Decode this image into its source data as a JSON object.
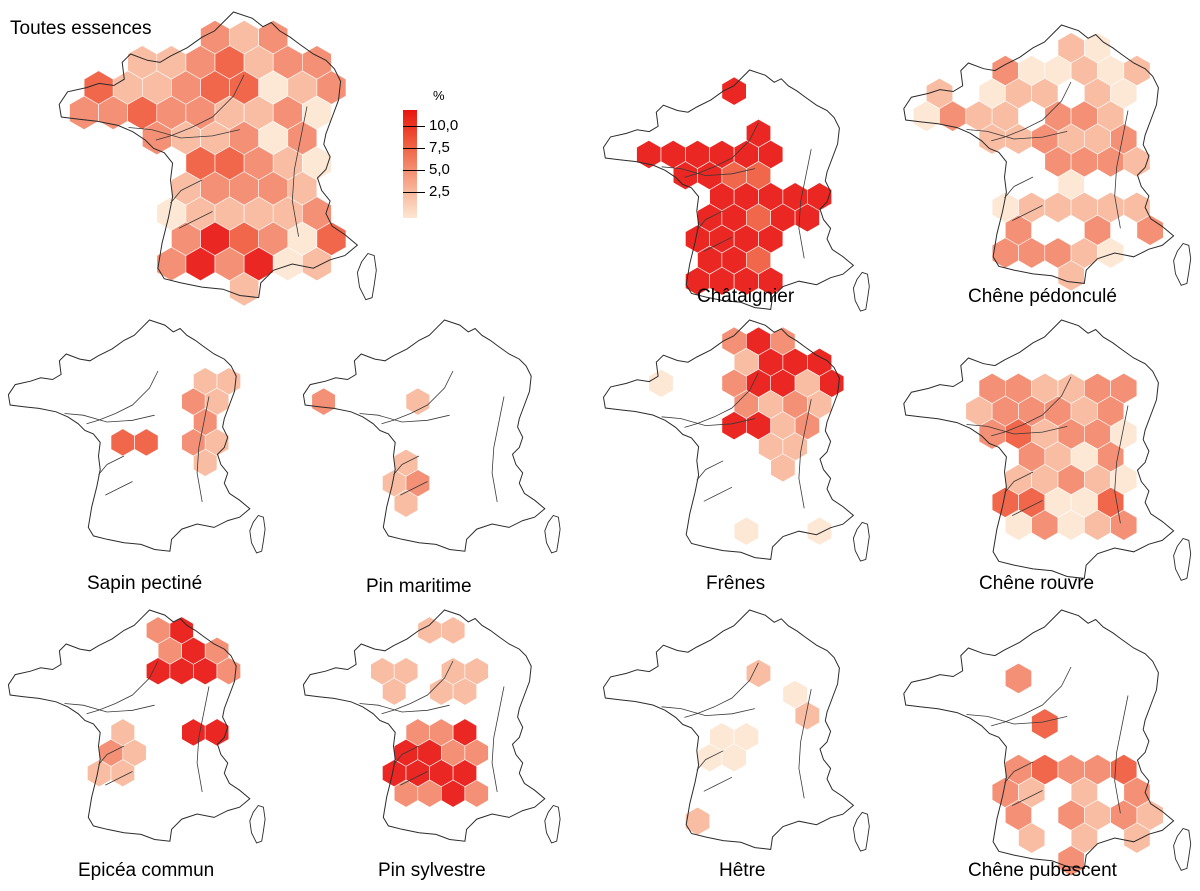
{
  "legend": {
    "unit": "%",
    "labels": [
      "10,0",
      "7,5",
      "5,0",
      "2,5"
    ],
    "colors": [
      "#e8150f",
      "#ef5a3c",
      "#f3876a",
      "#f8b79b",
      "#fde6d2"
    ]
  },
  "panels": [
    {
      "title": "Toutes essences",
      "intensity": "medium-all"
    },
    {
      "title": "Châtaignier",
      "intensity": "high-centre-west"
    },
    {
      "title": "Chêne pédonculé",
      "intensity": "medium-broad"
    },
    {
      "title": "Sapin pectiné",
      "intensity": "low-east"
    },
    {
      "title": "Pin maritime",
      "intensity": "low-southwest"
    },
    {
      "title": "Frênes",
      "intensity": "high-northeast"
    },
    {
      "title": "Chêne rouvre",
      "intensity": "medium-centre"
    },
    {
      "title": "Epicéa commun",
      "intensity": "high-northeast-spots"
    },
    {
      "title": "Pin sylvestre",
      "intensity": "high-centre-south"
    },
    {
      "title": "Hêtre",
      "intensity": "low-scattered"
    },
    {
      "title": "Chêne pubescent",
      "intensity": "medium-south"
    }
  ]
}
